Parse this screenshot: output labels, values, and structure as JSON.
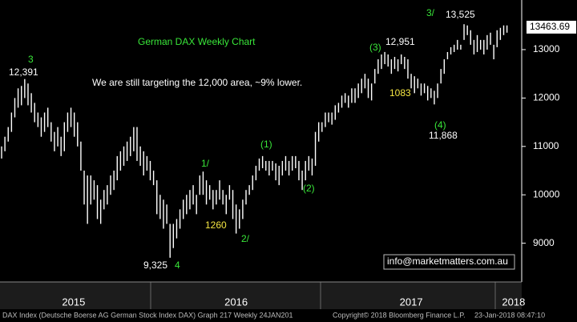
{
  "chart_data": {
    "type": "ohlc",
    "color": "#ffffff",
    "xlim": [
      0,
      156
    ],
    "xticks": [
      {
        "value": 21.8,
        "label": "2015"
      },
      {
        "value": 71,
        "label": "2016"
      },
      {
        "value": 124,
        "label": "2017"
      },
      {
        "value": 155,
        "label": "2018"
      }
    ],
    "ylim": [
      8200,
      14025
    ],
    "yticks": [
      9000,
      10000,
      11000,
      12000,
      13000
    ],
    "grid": false,
    "last_price": 13463.69,
    "low": [
      10750,
      10900,
      11100,
      11300,
      11600,
      11800,
      11850,
      12000,
      11850,
      11700,
      11500,
      11400,
      11200,
      11300,
      11400,
      11100,
      10900,
      11000,
      10800,
      10900,
      11300,
      11400,
      11200,
      11000,
      10500,
      9800,
      9400,
      9800,
      9900,
      9500,
      9400,
      9700,
      9800,
      10000,
      10100,
      10300,
      10500,
      10600,
      10700,
      10800,
      10900,
      10700,
      10600,
      10400,
      10500,
      10300,
      10200,
      9600,
      9500,
      9300,
      9400,
      8700,
      8900,
      9100,
      9300,
      9500,
      9600,
      9700,
      9800,
      9600,
      10000,
      10000,
      9800,
      9900,
      9700,
      9800,
      9900,
      9800,
      9600,
      9900,
      9500,
      9200,
      9300,
      9500,
      9800,
      10000,
      10100,
      10300,
      10500,
      10550,
      10500,
      10400,
      10500,
      10300,
      10200,
      10400,
      10500,
      10400,
      10500,
      10550,
      10300,
      10100,
      10300,
      10500,
      10400,
      10600,
      11100,
      11300,
      11400,
      11500,
      11450,
      11550,
      11700,
      11800,
      11900,
      11800,
      11900,
      11900,
      12000,
      12100,
      12200,
      12000,
      11950,
      12300,
      12500,
      12600,
      12700,
      12650,
      12500,
      12600,
      12550,
      12700,
      12600,
      12400,
      12200,
      12100,
      12200,
      12050,
      12100,
      11950,
      12000,
      11868,
      12000,
      12300,
      12500,
      12800,
      12900,
      12950,
      13000,
      13000,
      13200,
      13300,
      13100,
      12900,
      12950,
      13000,
      12900,
      13000,
      13100,
      12800,
      13050,
      13200,
      13300,
      13350
    ],
    "high": [
      11000,
      11200,
      11400,
      11700,
      12000,
      12200,
      12250,
      12391,
      12300,
      12100,
      11900,
      11700,
      11600,
      11700,
      11800,
      11500,
      11300,
      11400,
      11200,
      11500,
      11700,
      11800,
      11700,
      11500,
      11100,
      10500,
      10400,
      10400,
      10300,
      10200,
      9900,
      10100,
      10200,
      10400,
      10500,
      10800,
      10900,
      11000,
      11100,
      11200,
      11400,
      11400,
      11000,
      10900,
      10800,
      10700,
      10500,
      10300,
      10000,
      9900,
      9800,
      9400,
      9400,
      9500,
      9700,
      9900,
      10000,
      10100,
      10200,
      10000,
      10400,
      10480,
      10300,
      10200,
      10100,
      10100,
      10300,
      10100,
      10000,
      10200,
      10100,
      9800,
      9700,
      9900,
      10100,
      10200,
      10400,
      10600,
      10750,
      10800,
      10700,
      10700,
      10700,
      10650,
      10600,
      10700,
      10800,
      10700,
      10800,
      10800,
      10700,
      10500,
      10700,
      10800,
      10750,
      11300,
      11500,
      11500,
      11700,
      11700,
      11700,
      11850,
      11900,
      12050,
      12100,
      12050,
      12200,
      12200,
      12300,
      12400,
      12500,
      12400,
      12300,
      12600,
      12800,
      12900,
      12951,
      12900,
      12800,
      12850,
      12800,
      12900,
      12850,
      12800,
      12500,
      12450,
      12400,
      12300,
      12300,
      12250,
      12200,
      12150,
      12300,
      12600,
      12800,
      12950,
      13050,
      13100,
      13200,
      13100,
      13525,
      13500,
      13400,
      13200,
      13300,
      13200,
      13200,
      13300,
      13350,
      13100,
      13400,
      13450,
      13500,
      13500
    ],
    "annotations": [
      "German DAX Weekly Chart",
      "We are still targeting the 12,000 area, ~9% lower.",
      "3",
      "12,391",
      "9,325",
      "4",
      "1/",
      "1260",
      "2/",
      "(1)",
      "(2)",
      "(3)",
      "12,951",
      "1083",
      "11,868",
      "(4)",
      "3/",
      "13,525",
      "info@marketmatters.com.au"
    ],
    "footer": [
      "DAX Index (Deutsche Boerse AG German Stock Index DAX) Graph 217  Weekly 24JAN201",
      "Copyright© 2018 Bloomberg Finance L.P.",
      "23-Jan-2018 08:47:10"
    ]
  }
}
